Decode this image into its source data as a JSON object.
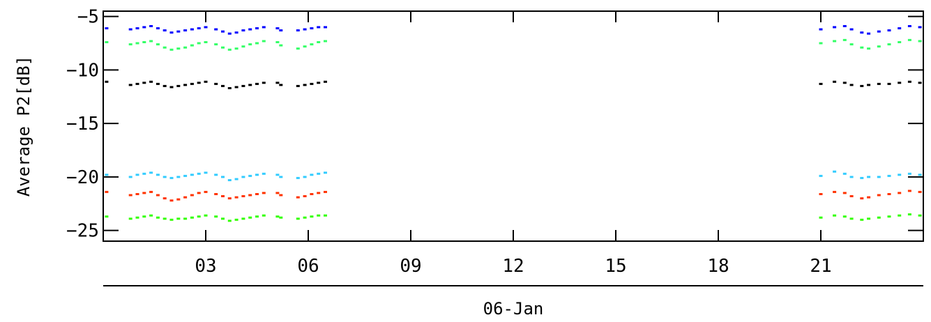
{
  "chart_data": {
    "type": "scatter",
    "ylabel": "Average P2[dB]",
    "xlabel": "06-Jan",
    "ylim": [
      -26,
      -4.5
    ],
    "xlim": [
      0,
      24
    ],
    "x_ticks": [
      {
        "value": 3,
        "label": "03"
      },
      {
        "value": 6,
        "label": "06"
      },
      {
        "value": 9,
        "label": "09"
      },
      {
        "value": 12,
        "label": "12"
      },
      {
        "value": 15,
        "label": "15"
      },
      {
        "value": 18,
        "label": "18"
      },
      {
        "value": 21,
        "label": "21"
      }
    ],
    "y_ticks": [
      {
        "value": -5,
        "label": "−5"
      },
      {
        "value": -10,
        "label": "−10"
      },
      {
        "value": -15,
        "label": "−15"
      },
      {
        "value": -20,
        "label": "−20"
      },
      {
        "value": -25,
        "label": "−25"
      }
    ],
    "grid": false,
    "series": [
      {
        "color": "#0000ff",
        "points": [
          [
            0.1,
            -6.1
          ],
          [
            0.8,
            -6.2
          ],
          [
            1.0,
            -6.1
          ],
          [
            1.2,
            -6.0
          ],
          [
            1.4,
            -5.9
          ],
          [
            1.6,
            -6.1
          ],
          [
            1.8,
            -6.3
          ],
          [
            2.0,
            -6.5
          ],
          [
            2.2,
            -6.4
          ],
          [
            2.4,
            -6.3
          ],
          [
            2.6,
            -6.2
          ],
          [
            2.8,
            -6.1
          ],
          [
            3.0,
            -6.0
          ],
          [
            3.3,
            -6.2
          ],
          [
            3.5,
            -6.4
          ],
          [
            3.7,
            -6.6
          ],
          [
            3.9,
            -6.5
          ],
          [
            4.1,
            -6.3
          ],
          [
            4.3,
            -6.2
          ],
          [
            4.5,
            -6.1
          ],
          [
            4.7,
            -6.0
          ],
          [
            5.1,
            -6.1
          ],
          [
            5.2,
            -6.3
          ],
          [
            5.7,
            -6.3
          ],
          [
            5.9,
            -6.2
          ],
          [
            6.1,
            -6.1
          ],
          [
            6.3,
            -6.0
          ],
          [
            6.5,
            -6.0
          ],
          [
            21.0,
            -6.2
          ],
          [
            21.4,
            -6.0
          ],
          [
            21.7,
            -5.9
          ],
          [
            21.9,
            -6.2
          ],
          [
            22.2,
            -6.5
          ],
          [
            22.4,
            -6.6
          ],
          [
            22.7,
            -6.4
          ],
          [
            23.0,
            -6.3
          ],
          [
            23.3,
            -6.1
          ],
          [
            23.6,
            -5.9
          ],
          [
            23.9,
            -6.0
          ]
        ]
      },
      {
        "color": "#33ff66",
        "points": [
          [
            0.1,
            -7.4
          ],
          [
            0.8,
            -7.6
          ],
          [
            1.0,
            -7.5
          ],
          [
            1.2,
            -7.4
          ],
          [
            1.4,
            -7.3
          ],
          [
            1.6,
            -7.6
          ],
          [
            1.8,
            -7.9
          ],
          [
            2.0,
            -8.1
          ],
          [
            2.2,
            -8.0
          ],
          [
            2.4,
            -7.9
          ],
          [
            2.6,
            -7.7
          ],
          [
            2.8,
            -7.5
          ],
          [
            3.0,
            -7.4
          ],
          [
            3.3,
            -7.6
          ],
          [
            3.5,
            -7.9
          ],
          [
            3.7,
            -8.1
          ],
          [
            3.9,
            -8.0
          ],
          [
            4.1,
            -7.8
          ],
          [
            4.3,
            -7.6
          ],
          [
            4.5,
            -7.5
          ],
          [
            4.7,
            -7.3
          ],
          [
            5.1,
            -7.4
          ],
          [
            5.2,
            -7.7
          ],
          [
            5.7,
            -8.0
          ],
          [
            5.9,
            -7.8
          ],
          [
            6.1,
            -7.6
          ],
          [
            6.3,
            -7.4
          ],
          [
            6.5,
            -7.3
          ],
          [
            21.0,
            -7.5
          ],
          [
            21.4,
            -7.3
          ],
          [
            21.7,
            -7.2
          ],
          [
            21.9,
            -7.6
          ],
          [
            22.2,
            -7.9
          ],
          [
            22.4,
            -8.0
          ],
          [
            22.7,
            -7.8
          ],
          [
            23.0,
            -7.6
          ],
          [
            23.3,
            -7.4
          ],
          [
            23.6,
            -7.2
          ],
          [
            23.9,
            -7.3
          ]
        ]
      },
      {
        "color": "#000000",
        "points": [
          [
            0.1,
            -11.1
          ],
          [
            0.8,
            -11.4
          ],
          [
            1.0,
            -11.3
          ],
          [
            1.2,
            -11.2
          ],
          [
            1.4,
            -11.1
          ],
          [
            1.6,
            -11.3
          ],
          [
            1.8,
            -11.5
          ],
          [
            2.0,
            -11.6
          ],
          [
            2.2,
            -11.5
          ],
          [
            2.4,
            -11.4
          ],
          [
            2.6,
            -11.3
          ],
          [
            2.8,
            -11.2
          ],
          [
            3.0,
            -11.1
          ],
          [
            3.3,
            -11.3
          ],
          [
            3.5,
            -11.5
          ],
          [
            3.7,
            -11.7
          ],
          [
            3.9,
            -11.6
          ],
          [
            4.1,
            -11.5
          ],
          [
            4.3,
            -11.4
          ],
          [
            4.5,
            -11.3
          ],
          [
            4.7,
            -11.2
          ],
          [
            5.1,
            -11.2
          ],
          [
            5.2,
            -11.4
          ],
          [
            5.7,
            -11.5
          ],
          [
            5.9,
            -11.4
          ],
          [
            6.1,
            -11.3
          ],
          [
            6.3,
            -11.2
          ],
          [
            6.5,
            -11.1
          ],
          [
            21.0,
            -11.3
          ],
          [
            21.4,
            -11.1
          ],
          [
            21.7,
            -11.2
          ],
          [
            21.9,
            -11.4
          ],
          [
            22.2,
            -11.5
          ],
          [
            22.4,
            -11.4
          ],
          [
            22.7,
            -11.3
          ],
          [
            23.0,
            -11.3
          ],
          [
            23.3,
            -11.2
          ],
          [
            23.6,
            -11.1
          ],
          [
            23.9,
            -11.2
          ]
        ]
      },
      {
        "color": "#33ccff",
        "points": [
          [
            0.1,
            -19.8
          ],
          [
            0.8,
            -20.0
          ],
          [
            1.0,
            -19.8
          ],
          [
            1.2,
            -19.7
          ],
          [
            1.4,
            -19.6
          ],
          [
            1.6,
            -19.8
          ],
          [
            1.8,
            -20.0
          ],
          [
            2.0,
            -20.1
          ],
          [
            2.2,
            -20.0
          ],
          [
            2.4,
            -19.9
          ],
          [
            2.6,
            -19.8
          ],
          [
            2.8,
            -19.7
          ],
          [
            3.0,
            -19.6
          ],
          [
            3.3,
            -19.8
          ],
          [
            3.5,
            -20.0
          ],
          [
            3.7,
            -20.3
          ],
          [
            3.9,
            -20.2
          ],
          [
            4.1,
            -20.0
          ],
          [
            4.3,
            -19.9
          ],
          [
            4.5,
            -19.8
          ],
          [
            4.7,
            -19.7
          ],
          [
            5.1,
            -19.8
          ],
          [
            5.2,
            -20.0
          ],
          [
            5.7,
            -20.1
          ],
          [
            5.9,
            -20.0
          ],
          [
            6.1,
            -19.8
          ],
          [
            6.3,
            -19.7
          ],
          [
            6.5,
            -19.6
          ],
          [
            21.0,
            -19.9
          ],
          [
            21.4,
            -19.5
          ],
          [
            21.7,
            -19.7
          ],
          [
            21.9,
            -20.0
          ],
          [
            22.2,
            -20.1
          ],
          [
            22.4,
            -20.0
          ],
          [
            22.7,
            -20.0
          ],
          [
            23.0,
            -19.9
          ],
          [
            23.3,
            -19.8
          ],
          [
            23.6,
            -19.7
          ],
          [
            23.9,
            -19.8
          ]
        ]
      },
      {
        "color": "#ff3300",
        "points": [
          [
            0.1,
            -21.4
          ],
          [
            0.8,
            -21.7
          ],
          [
            1.0,
            -21.6
          ],
          [
            1.2,
            -21.5
          ],
          [
            1.4,
            -21.4
          ],
          [
            1.6,
            -21.7
          ],
          [
            1.8,
            -22.0
          ],
          [
            2.0,
            -22.2
          ],
          [
            2.2,
            -22.1
          ],
          [
            2.4,
            -21.9
          ],
          [
            2.6,
            -21.7
          ],
          [
            2.8,
            -21.5
          ],
          [
            3.0,
            -21.4
          ],
          [
            3.3,
            -21.6
          ],
          [
            3.5,
            -21.8
          ],
          [
            3.7,
            -22.0
          ],
          [
            3.9,
            -21.9
          ],
          [
            4.1,
            -21.8
          ],
          [
            4.3,
            -21.7
          ],
          [
            4.5,
            -21.6
          ],
          [
            4.7,
            -21.5
          ],
          [
            5.1,
            -21.5
          ],
          [
            5.2,
            -21.7
          ],
          [
            5.7,
            -21.9
          ],
          [
            5.9,
            -21.8
          ],
          [
            6.1,
            -21.6
          ],
          [
            6.3,
            -21.5
          ],
          [
            6.5,
            -21.4
          ],
          [
            21.0,
            -21.6
          ],
          [
            21.4,
            -21.4
          ],
          [
            21.7,
            -21.5
          ],
          [
            21.9,
            -21.8
          ],
          [
            22.2,
            -22.0
          ],
          [
            22.4,
            -21.9
          ],
          [
            22.7,
            -21.7
          ],
          [
            23.0,
            -21.6
          ],
          [
            23.3,
            -21.5
          ],
          [
            23.6,
            -21.3
          ],
          [
            23.9,
            -21.4
          ]
        ]
      },
      {
        "color": "#33ff00",
        "points": [
          [
            0.1,
            -23.7
          ],
          [
            0.8,
            -23.9
          ],
          [
            1.0,
            -23.8
          ],
          [
            1.2,
            -23.7
          ],
          [
            1.4,
            -23.6
          ],
          [
            1.6,
            -23.8
          ],
          [
            1.8,
            -23.9
          ],
          [
            2.0,
            -24.0
          ],
          [
            2.2,
            -23.9
          ],
          [
            2.4,
            -23.9
          ],
          [
            2.6,
            -23.8
          ],
          [
            2.8,
            -23.7
          ],
          [
            3.0,
            -23.6
          ],
          [
            3.3,
            -23.7
          ],
          [
            3.5,
            -23.9
          ],
          [
            3.7,
            -24.1
          ],
          [
            3.9,
            -24.0
          ],
          [
            4.1,
            -23.9
          ],
          [
            4.3,
            -23.8
          ],
          [
            4.5,
            -23.7
          ],
          [
            4.7,
            -23.6
          ],
          [
            5.1,
            -23.7
          ],
          [
            5.2,
            -23.8
          ],
          [
            5.7,
            -23.9
          ],
          [
            5.9,
            -23.8
          ],
          [
            6.1,
            -23.7
          ],
          [
            6.3,
            -23.6
          ],
          [
            6.5,
            -23.6
          ],
          [
            21.0,
            -23.8
          ],
          [
            21.4,
            -23.6
          ],
          [
            21.7,
            -23.7
          ],
          [
            21.9,
            -23.9
          ],
          [
            22.2,
            -24.0
          ],
          [
            22.4,
            -23.9
          ],
          [
            22.7,
            -23.8
          ],
          [
            23.0,
            -23.7
          ],
          [
            23.3,
            -23.6
          ],
          [
            23.6,
            -23.5
          ],
          [
            23.9,
            -23.6
          ]
        ]
      }
    ]
  }
}
